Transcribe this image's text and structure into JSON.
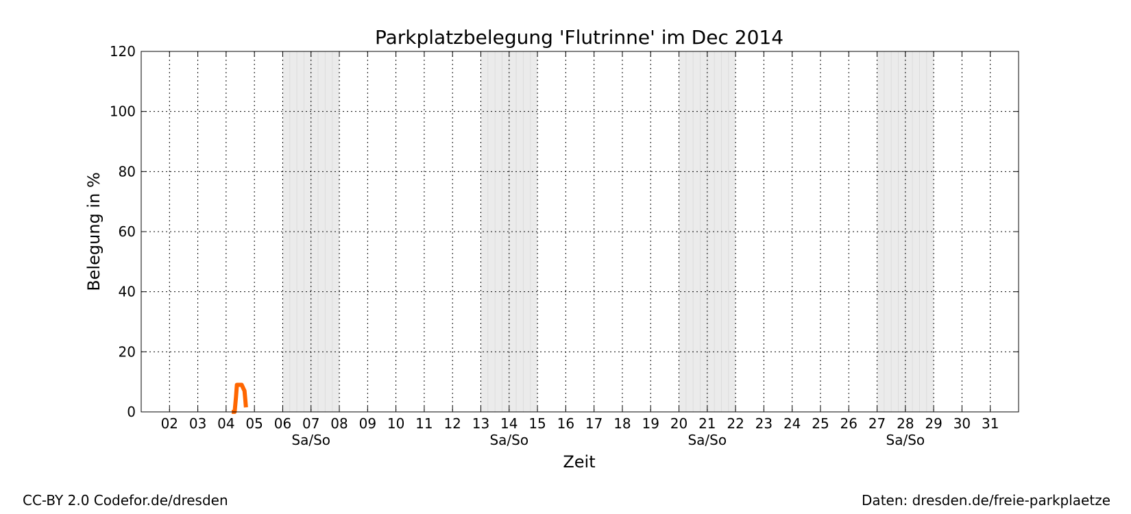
{
  "chart_data": {
    "type": "line",
    "title": "Parkplatzbelegung 'Flutrinne' im Dec 2014",
    "xlabel": "Zeit",
    "ylabel": "Belegung in %",
    "xlim": [
      1,
      32
    ],
    "ylim": [
      0,
      120
    ],
    "yticks": [
      0,
      20,
      40,
      60,
      80,
      100,
      120
    ],
    "xtick_values": [
      2,
      3,
      4,
      5,
      6,
      7,
      8,
      9,
      10,
      11,
      12,
      13,
      14,
      15,
      16,
      17,
      18,
      19,
      20,
      21,
      22,
      23,
      24,
      25,
      26,
      27,
      28,
      29,
      30,
      31
    ],
    "xtick_labels": [
      "02",
      "03",
      "04",
      "05",
      "06",
      "07",
      "08",
      "09",
      "10",
      "11",
      "12",
      "13",
      "14",
      "15",
      "16",
      "17",
      "18",
      "19",
      "20",
      "21",
      "22",
      "23",
      "24",
      "25",
      "26",
      "27",
      "28",
      "29",
      "30",
      "31"
    ],
    "grid": true,
    "weekend_label": "Sa/So",
    "weekends": [
      {
        "start": 6,
        "end": 8
      },
      {
        "start": 13,
        "end": 15
      },
      {
        "start": 20,
        "end": 22
      },
      {
        "start": 27,
        "end": 29
      }
    ],
    "series": [
      {
        "color": "#ff6600",
        "points": [
          [
            4.2,
            0
          ],
          [
            4.3,
            0
          ],
          [
            4.35,
            5
          ],
          [
            4.38,
            9
          ],
          [
            4.45,
            9
          ],
          [
            4.55,
            9
          ],
          [
            4.6,
            8
          ],
          [
            4.65,
            7
          ],
          [
            4.68,
            4
          ],
          [
            4.7,
            1.5
          ]
        ]
      }
    ]
  },
  "footer": {
    "left": "CC-BY 2.0 Codefor.de/dresden",
    "right": "Daten: dresden.de/freie-parkplaetze"
  }
}
